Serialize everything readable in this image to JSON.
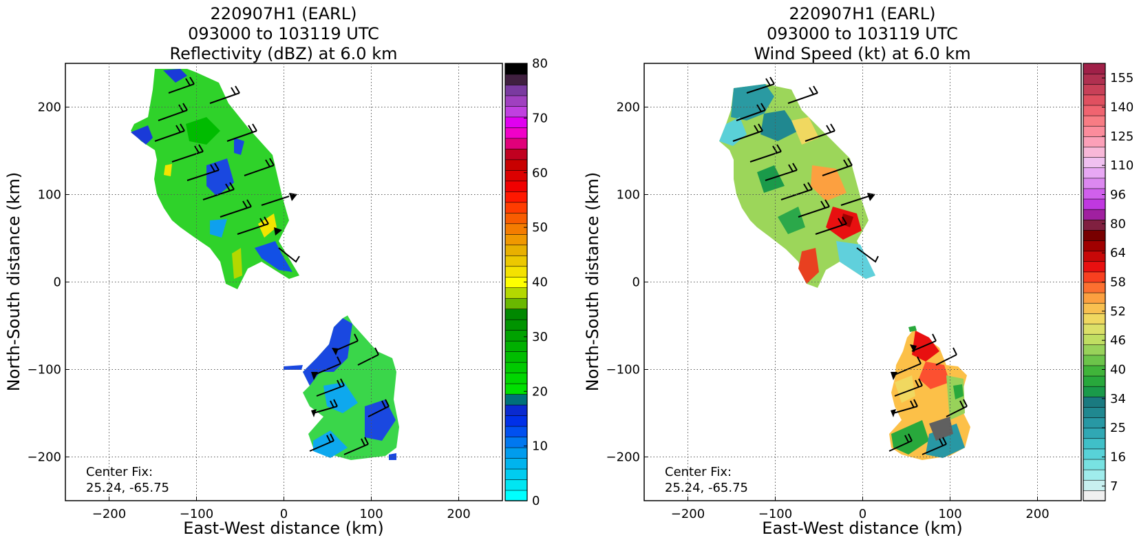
{
  "panels": [
    {
      "title_lines": [
        "220907H1 (EARL)",
        "093000 to 103119 UTC",
        "Reflectivity (dBZ) at 6.0 km"
      ],
      "xlabel": "East-West distance (km)",
      "ylabel": "North-South distance (km)",
      "center_fix_label": "Center Fix:",
      "center_fix_value": "25.24, -65.75",
      "colorbar_ticks": [
        "0",
        "10",
        "20",
        "30",
        "40",
        "50",
        "60",
        "70",
        "80"
      ]
    },
    {
      "title_lines": [
        "220907H1 (EARL)",
        "093000 to 103119 UTC",
        "Wind Speed (kt) at 6.0 km"
      ],
      "xlabel": "East-West distance (km)",
      "ylabel": "North-South distance (km)",
      "center_fix_label": "Center Fix:",
      "center_fix_value": "25.24, -65.75",
      "colorbar_ticks": [
        "7",
        "16",
        "25",
        "34",
        "40",
        "46",
        "52",
        "58",
        "64",
        "80",
        "96",
        "110",
        "125",
        "140",
        "155"
      ]
    }
  ],
  "chart_data": [
    {
      "type": "heatmap",
      "title": "220907H1 (EARL) 093000 to 103119 UTC Reflectivity (dBZ) at 6.0 km",
      "xlabel": "East-West distance (km)",
      "ylabel": "North-South distance (km)",
      "xlim": [
        -250,
        250
      ],
      "ylim": [
        -250,
        250
      ],
      "xticks": [
        -200,
        -100,
        0,
        100,
        200
      ],
      "yticks": [
        -200,
        -100,
        0,
        100,
        200
      ],
      "grid": true,
      "colorbar": {
        "ticks": [
          0,
          10,
          20,
          30,
          40,
          50,
          60,
          70,
          80
        ],
        "range": [
          0,
          80
        ],
        "colors": [
          "#00ffff",
          "#00e6f2",
          "#00ccf0",
          "#00b4ee",
          "#009cee",
          "#0078f0",
          "#0050f0",
          "#0030e8",
          "#0a2ad0",
          "#00707a",
          "#00e000",
          "#00d600",
          "#00ca00",
          "#00bd00",
          "#00b000",
          "#00a200",
          "#009400",
          "#008800",
          "#6ab800",
          "#b4d800",
          "#ffff00",
          "#f4e200",
          "#ecc800",
          "#e8b000",
          "#f09800",
          "#f47c00",
          "#f85c00",
          "#ff3c00",
          "#ff1800",
          "#f00000",
          "#dc0000",
          "#c80000",
          "#c00020",
          "#e0007a",
          "#f000c8",
          "#e000f0",
          "#c040e0",
          "#a040c0",
          "#7a3aa0",
          "#402040",
          "#000000"
        ]
      },
      "annotations": [
        "Center Fix:",
        "25.24, -65.75"
      ]
    },
    {
      "type": "heatmap",
      "title": "220907H1 (EARL) 093000 to 103119 UTC Wind Speed (kt) at 6.0 km",
      "xlabel": "East-West distance (km)",
      "ylabel": "North-South distance (km)",
      "xlim": [
        -250,
        250
      ],
      "ylim": [
        -250,
        250
      ],
      "xticks": [
        -200,
        -100,
        0,
        100,
        200
      ],
      "yticks": [
        -200,
        -100,
        0,
        100,
        200
      ],
      "grid": true,
      "colorbar": {
        "ticks": [
          7,
          16,
          25,
          34,
          40,
          46,
          52,
          58,
          64,
          80,
          96,
          110,
          125,
          140,
          155
        ],
        "colors": [
          "#f0f0f0",
          "#c8f0f0",
          "#a0ecec",
          "#78e2e2",
          "#58d2d8",
          "#40c0c8",
          "#30a8b4",
          "#2898a4",
          "#208890",
          "#1a7a80",
          "#1a9a4a",
          "#28a83c",
          "#40b43a",
          "#6cc44a",
          "#98d25a",
          "#c0de62",
          "#dce068",
          "#f0d860",
          "#f8c050",
          "#fca040",
          "#fc7030",
          "#f84020",
          "#e81010",
          "#c80808",
          "#a00000",
          "#780000",
          "#802040",
          "#a020a0",
          "#c038e0",
          "#d060ec",
          "#dc88f0",
          "#e8a8f4",
          "#f0c0f0",
          "#f8b8d8",
          "#fca0b8",
          "#fc8c9c",
          "#f87c84",
          "#f06470",
          "#e05060",
          "#c84058",
          "#b03050",
          "#a02048"
        ]
      },
      "annotations": [
        "Center Fix:",
        "25.24, -65.75"
      ]
    }
  ]
}
